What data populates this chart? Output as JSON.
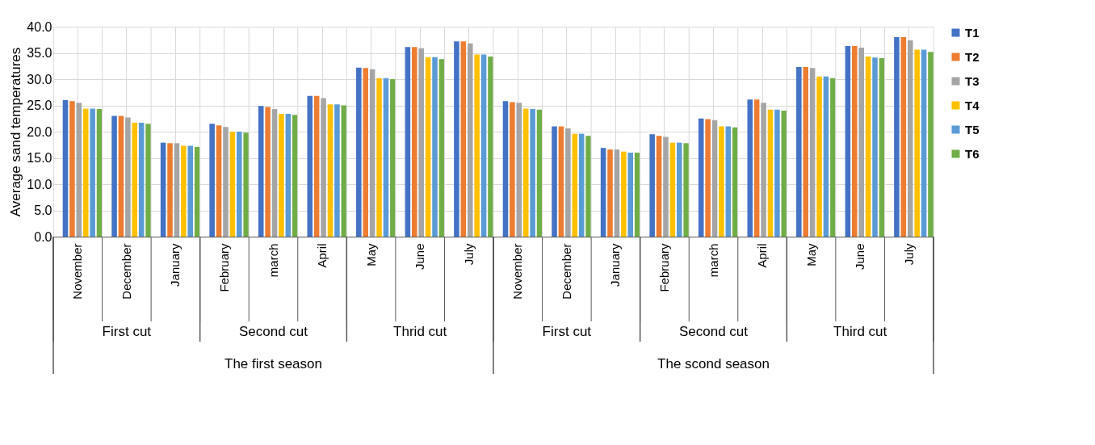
{
  "chart_data": {
    "type": "bar",
    "ylabel": "Average sand temperatures",
    "categories": [
      "November",
      "December",
      "January",
      "February",
      "march",
      "April",
      "May",
      "June",
      "July",
      "November",
      "December",
      "January",
      "February",
      "march",
      "April",
      "May",
      "June",
      "July"
    ],
    "series": [
      {
        "name": "T1",
        "color": "#4472c4",
        "values": [
          26.0,
          23.0,
          17.9,
          21.5,
          24.9,
          26.8,
          32.2,
          36.1,
          37.2,
          25.8,
          21.0,
          16.9,
          19.5,
          22.5,
          26.1,
          32.3,
          36.3,
          38.0
        ]
      },
      {
        "name": "T2",
        "color": "#ed7d31",
        "values": [
          25.8,
          23.0,
          17.8,
          21.2,
          24.7,
          26.8,
          32.1,
          36.1,
          37.2,
          25.6,
          21.0,
          16.6,
          19.2,
          22.4,
          26.1,
          32.3,
          36.3,
          38.0
        ]
      },
      {
        "name": "T3",
        "color": "#a5a5a5",
        "values": [
          25.5,
          22.7,
          17.8,
          20.9,
          24.3,
          26.4,
          31.9,
          35.9,
          36.8,
          25.5,
          20.6,
          16.6,
          19.0,
          22.2,
          25.5,
          32.1,
          36.0,
          37.4
        ]
      },
      {
        "name": "T4",
        "color": "#ffc000",
        "values": [
          24.4,
          21.7,
          17.3,
          20.0,
          23.4,
          25.2,
          30.2,
          34.2,
          34.7,
          24.4,
          19.6,
          16.2,
          17.9,
          21.0,
          24.2,
          30.5,
          34.3,
          35.6
        ]
      },
      {
        "name": "T5",
        "color": "#5b9bd5",
        "values": [
          24.4,
          21.7,
          17.3,
          20.0,
          23.4,
          25.2,
          30.2,
          34.2,
          34.7,
          24.3,
          19.6,
          16.0,
          17.9,
          21.0,
          24.2,
          30.5,
          34.1,
          35.6
        ]
      },
      {
        "name": "T6",
        "color": "#70ad47",
        "values": [
          24.3,
          21.5,
          17.1,
          19.8,
          23.2,
          25.0,
          30.0,
          33.8,
          34.3,
          24.2,
          19.2,
          16.0,
          17.8,
          20.8,
          24.0,
          30.2,
          34.0,
          35.2
        ]
      }
    ],
    "ylim": [
      0,
      40
    ],
    "yticks": [
      {
        "value": 0,
        "label": "0.0"
      },
      {
        "value": 5,
        "label": "5.0"
      },
      {
        "value": 10,
        "label": "10.0"
      },
      {
        "value": 15,
        "label": "15.0"
      },
      {
        "value": 20,
        "label": "20.0"
      },
      {
        "value": 25,
        "label": "25.0"
      },
      {
        "value": 30,
        "label": "30.0"
      },
      {
        "value": 35,
        "label": "35.0"
      },
      {
        "value": 40,
        "label": "40.0"
      }
    ],
    "grid": true,
    "legend": "right",
    "annotations": [
      "First cut",
      "Second cut",
      "Thrid cut",
      "First cut",
      "Second cut",
      "Third cut",
      "The first season",
      "The scond season"
    ]
  }
}
